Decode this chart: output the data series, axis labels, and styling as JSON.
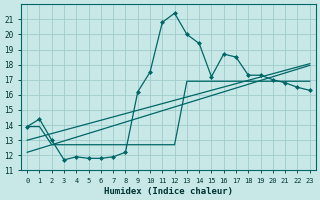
{
  "xlabel": "Humidex (Indice chaleur)",
  "background_color": "#c8e8e8",
  "grid_color": "#a0cccc",
  "line_color": "#006666",
  "xlim": [
    0,
    23
  ],
  "ylim": [
    11,
    22
  ],
  "xticks": [
    0,
    1,
    2,
    3,
    4,
    5,
    6,
    7,
    8,
    9,
    10,
    11,
    12,
    13,
    14,
    15,
    16,
    17,
    18,
    19,
    20,
    21,
    22,
    23
  ],
  "yticks": [
    11,
    12,
    13,
    14,
    15,
    16,
    17,
    18,
    19,
    20,
    21
  ],
  "main_y": [
    13.9,
    14.4,
    13.0,
    11.7,
    11.9,
    11.8,
    11.8,
    11.9,
    12.2,
    16.2,
    17.5,
    20.8,
    21.4,
    20.0,
    19.4,
    17.2,
    18.7,
    18.5,
    17.3,
    17.3,
    17.0,
    16.8,
    16.5,
    16.3
  ],
  "reg_upper": [
    13.9,
    13.9,
    12.7,
    12.7,
    12.7,
    12.7,
    12.7,
    12.7,
    12.7,
    12.7,
    12.7,
    12.7,
    12.7,
    16.9,
    16.9,
    16.9,
    16.9,
    16.9,
    16.9,
    16.9,
    16.9,
    16.9,
    16.9,
    16.9
  ],
  "reg_mid1": [
    12.2,
    12.45,
    12.7,
    12.95,
    13.2,
    13.45,
    13.7,
    13.95,
    14.2,
    14.45,
    14.7,
    14.95,
    15.2,
    15.45,
    15.7,
    15.95,
    16.2,
    16.45,
    16.7,
    16.95,
    17.2,
    17.45,
    17.7,
    17.95
  ],
  "reg_mid2": [
    13.0,
    13.22,
    13.44,
    13.66,
    13.88,
    14.1,
    14.32,
    14.54,
    14.76,
    14.98,
    15.2,
    15.42,
    15.64,
    15.86,
    16.08,
    16.3,
    16.52,
    16.74,
    16.96,
    17.18,
    17.4,
    17.62,
    17.84,
    18.06
  ]
}
